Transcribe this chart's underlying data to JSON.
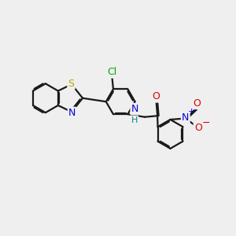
{
  "bg_color": "#efefef",
  "bond_color": "#1a1a1a",
  "bond_lw": 1.6,
  "dbo": 0.05,
  "atom_colors": {
    "S": "#aaaa00",
    "N": "#0000dd",
    "NH": "#0000dd",
    "H": "#008888",
    "O": "#dd0000",
    "Cl": "#00aa00"
  },
  "fontsize": 8.5
}
